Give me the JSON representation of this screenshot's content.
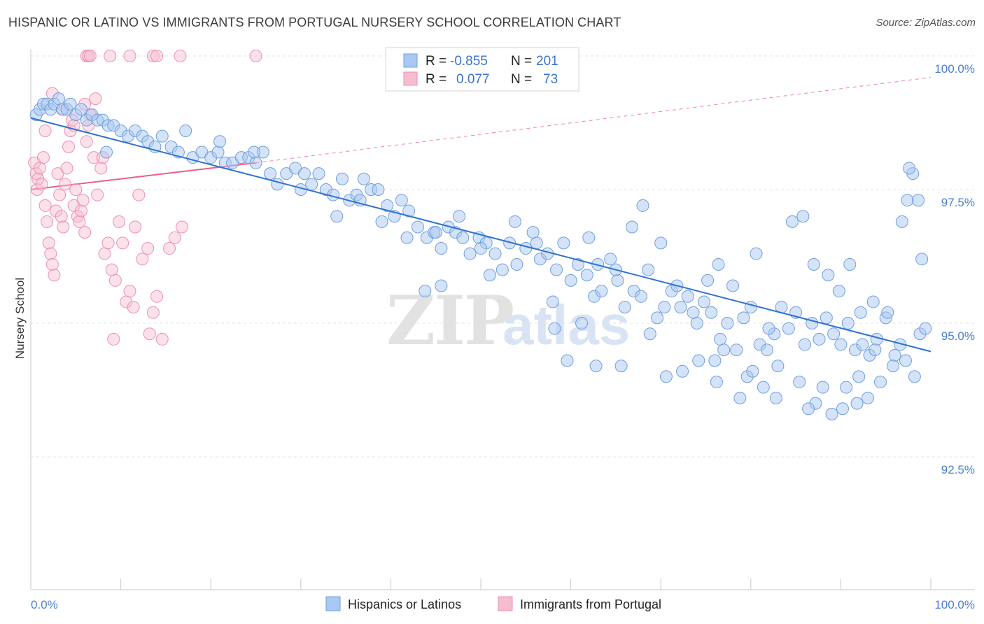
{
  "header": {
    "title": "HISPANIC OR LATINO VS IMMIGRANTS FROM PORTUGAL NURSERY SCHOOL CORRELATION CHART",
    "source": "Source: ZipAtlas.com"
  },
  "watermark": {
    "zip": "ZIP",
    "atlas": "atlas"
  },
  "legend": {
    "rows": [
      {
        "r_label": "R =",
        "r_value": "-0.855",
        "n_label": "N =",
        "n_value": "201"
      },
      {
        "r_label": "R =",
        "r_value": "0.077",
        "n_label": "N =",
        "n_value": "73"
      }
    ]
  },
  "bottom_legend": {
    "items": [
      "Hispanics or Latinos",
      "Immigrants from Portugal"
    ]
  },
  "colors": {
    "blue_fill": "#a9c8f2",
    "blue_stroke": "#6f9fe0",
    "blue_line": "#2e72d2",
    "pink_fill": "#f6bcd0",
    "pink_stroke": "#ee90b0",
    "pink_line": "#e8608c",
    "axis_text": "#4a7fd1",
    "grid": "#e3e3e3"
  },
  "chart_data": {
    "type": "scatter",
    "title": "HISPANIC OR LATINO VS IMMIGRANTS FROM PORTUGAL NURSERY SCHOOL CORRELATION CHART",
    "xlabel": "",
    "ylabel": "Nursery School",
    "xlim": [
      0,
      100
    ],
    "ylim": [
      90.0,
      100.3
    ],
    "x_tick_labels": [
      "0.0%",
      "100.0%"
    ],
    "y_ticks": [
      92.5,
      95.0,
      97.5,
      100.0
    ],
    "y_tick_labels": [
      "92.5%",
      "95.0%",
      "97.5%",
      "100.0%"
    ],
    "grid": true,
    "legend_placement": "top-center",
    "series": [
      {
        "name": "Hispanics or Latinos",
        "color": "#a9c8f2",
        "trend": {
          "x": [
            0,
            100
          ],
          "y": [
            98.84,
            94.47
          ],
          "style": "solid",
          "color": "#2e72d2"
        },
        "points": [
          [
            0.6,
            98.9
          ],
          [
            1.0,
            99.0
          ],
          [
            1.4,
            99.1
          ],
          [
            1.8,
            99.1
          ],
          [
            2.2,
            99.0
          ],
          [
            2.6,
            99.1
          ],
          [
            3.1,
            99.2
          ],
          [
            3.5,
            99.0
          ],
          [
            4.0,
            99.0
          ],
          [
            4.4,
            99.1
          ],
          [
            5.0,
            98.9
          ],
          [
            5.6,
            99.0
          ],
          [
            6.2,
            98.8
          ],
          [
            6.8,
            98.9
          ],
          [
            7.4,
            98.8
          ],
          [
            8.0,
            98.8
          ],
          [
            8.6,
            98.7
          ],
          [
            9.2,
            98.7
          ],
          [
            10.0,
            98.6
          ],
          [
            10.8,
            98.5
          ],
          [
            11.6,
            98.6
          ],
          [
            12.4,
            98.5
          ],
          [
            13.0,
            98.4
          ],
          [
            13.8,
            98.3
          ],
          [
            14.6,
            98.5
          ],
          [
            15.6,
            98.3
          ],
          [
            16.4,
            98.2
          ],
          [
            17.2,
            98.6
          ],
          [
            18.0,
            98.1
          ],
          [
            19.0,
            98.2
          ],
          [
            20.0,
            98.1
          ],
          [
            20.8,
            98.2
          ],
          [
            21.6,
            98.0
          ],
          [
            22.4,
            98.0
          ],
          [
            23.4,
            98.1
          ],
          [
            24.2,
            98.1
          ],
          [
            25.0,
            98.0
          ],
          [
            25.8,
            98.2
          ],
          [
            26.6,
            97.8
          ],
          [
            27.4,
            97.6
          ],
          [
            28.4,
            97.8
          ],
          [
            29.4,
            97.9
          ],
          [
            30.4,
            97.8
          ],
          [
            31.2,
            97.6
          ],
          [
            32.0,
            97.8
          ],
          [
            32.8,
            97.5
          ],
          [
            33.6,
            97.4
          ],
          [
            34.6,
            97.7
          ],
          [
            35.4,
            97.3
          ],
          [
            36.2,
            97.4
          ],
          [
            37.0,
            97.7
          ],
          [
            37.8,
            97.5
          ],
          [
            38.6,
            97.5
          ],
          [
            39.6,
            97.2
          ],
          [
            40.4,
            97.0
          ],
          [
            41.2,
            97.3
          ],
          [
            42.0,
            97.1
          ],
          [
            43.0,
            96.8
          ],
          [
            44.0,
            96.6
          ],
          [
            44.8,
            96.7
          ],
          [
            45.6,
            96.4
          ],
          [
            46.4,
            96.8
          ],
          [
            47.2,
            96.7
          ],
          [
            48.0,
            96.6
          ],
          [
            48.8,
            96.3
          ],
          [
            49.8,
            96.6
          ],
          [
            50.6,
            96.5
          ],
          [
            51.6,
            96.3
          ],
          [
            52.4,
            96.0
          ],
          [
            53.2,
            96.5
          ],
          [
            54.0,
            96.1
          ],
          [
            55.0,
            96.4
          ],
          [
            55.8,
            96.7
          ],
          [
            56.6,
            96.2
          ],
          [
            57.4,
            96.3
          ],
          [
            58.4,
            96.0
          ],
          [
            59.2,
            96.5
          ],
          [
            60.0,
            95.8
          ],
          [
            60.8,
            96.1
          ],
          [
            61.8,
            95.9
          ],
          [
            62.6,
            95.5
          ],
          [
            63.4,
            95.6
          ],
          [
            64.4,
            96.2
          ],
          [
            65.2,
            95.8
          ],
          [
            66.0,
            95.3
          ],
          [
            67.0,
            95.6
          ],
          [
            67.8,
            95.5
          ],
          [
            68.6,
            96.0
          ],
          [
            69.6,
            95.1
          ],
          [
            70.4,
            95.3
          ],
          [
            71.2,
            95.6
          ],
          [
            72.2,
            95.3
          ],
          [
            73.0,
            95.5
          ],
          [
            74.0,
            95.0
          ],
          [
            74.8,
            95.4
          ],
          [
            75.6,
            95.2
          ],
          [
            76.6,
            94.7
          ],
          [
            77.4,
            95.0
          ],
          [
            78.4,
            94.5
          ],
          [
            79.2,
            95.1
          ],
          [
            80.0,
            95.3
          ],
          [
            81.0,
            94.6
          ],
          [
            81.8,
            94.5
          ],
          [
            82.6,
            94.8
          ],
          [
            83.4,
            95.3
          ],
          [
            84.2,
            94.9
          ],
          [
            85.0,
            95.2
          ],
          [
            86.0,
            94.6
          ],
          [
            86.8,
            95.0
          ],
          [
            87.6,
            94.7
          ],
          [
            88.4,
            95.1
          ],
          [
            89.2,
            94.8
          ],
          [
            90.0,
            94.6
          ],
          [
            90.8,
            95.0
          ],
          [
            91.6,
            94.5
          ],
          [
            92.4,
            94.6
          ],
          [
            93.2,
            94.4
          ],
          [
            94.0,
            94.7
          ],
          [
            95.0,
            95.1
          ],
          [
            96.0,
            94.4
          ],
          [
            21.0,
            98.4
          ],
          [
            24.8,
            98.2
          ],
          [
            30.0,
            97.5
          ],
          [
            34.0,
            97.0
          ],
          [
            36.6,
            97.3
          ],
          [
            39.0,
            96.9
          ],
          [
            41.8,
            96.6
          ],
          [
            45.0,
            96.7
          ],
          [
            47.6,
            97.0
          ],
          [
            50.0,
            96.4
          ],
          [
            51.0,
            95.9
          ],
          [
            53.8,
            96.9
          ],
          [
            56.2,
            96.5
          ],
          [
            58.0,
            95.4
          ],
          [
            62.0,
            96.6
          ],
          [
            63.0,
            96.1
          ],
          [
            65.0,
            96.0
          ],
          [
            66.8,
            96.8
          ],
          [
            68.0,
            97.2
          ],
          [
            70.0,
            96.5
          ],
          [
            71.8,
            95.7
          ],
          [
            73.6,
            95.2
          ],
          [
            75.2,
            95.8
          ],
          [
            76.4,
            96.1
          ],
          [
            78.0,
            95.7
          ],
          [
            80.6,
            96.3
          ],
          [
            82.0,
            94.9
          ],
          [
            84.6,
            96.9
          ],
          [
            85.8,
            97.0
          ],
          [
            87.0,
            96.1
          ],
          [
            88.6,
            95.9
          ],
          [
            89.8,
            95.6
          ],
          [
            91.0,
            96.1
          ],
          [
            92.2,
            95.2
          ],
          [
            93.6,
            95.4
          ],
          [
            95.2,
            95.2
          ],
          [
            96.8,
            96.9
          ],
          [
            97.4,
            97.3
          ],
          [
            98.0,
            97.8
          ],
          [
            98.6,
            97.3
          ],
          [
            99.0,
            96.2
          ],
          [
            97.6,
            97.9
          ],
          [
            43.8,
            95.6
          ],
          [
            45.6,
            95.7
          ],
          [
            58.2,
            94.9
          ],
          [
            61.2,
            95.0
          ],
          [
            65.6,
            94.2
          ],
          [
            68.8,
            94.8
          ],
          [
            72.4,
            94.1
          ],
          [
            76.0,
            94.3
          ],
          [
            77.0,
            94.5
          ],
          [
            78.8,
            93.6
          ],
          [
            79.6,
            94.0
          ],
          [
            81.4,
            93.8
          ],
          [
            83.0,
            94.2
          ],
          [
            85.4,
            93.9
          ],
          [
            87.2,
            93.5
          ],
          [
            88.0,
            93.8
          ],
          [
            90.2,
            93.4
          ],
          [
            91.8,
            93.5
          ],
          [
            93.0,
            93.6
          ],
          [
            94.4,
            93.9
          ],
          [
            59.6,
            94.3
          ],
          [
            62.8,
            94.2
          ],
          [
            70.6,
            94.0
          ],
          [
            74.2,
            94.3
          ],
          [
            76.2,
            93.9
          ],
          [
            80.2,
            94.1
          ],
          [
            82.8,
            93.6
          ],
          [
            86.4,
            93.4
          ],
          [
            89.0,
            93.3
          ],
          [
            90.6,
            93.8
          ],
          [
            92.0,
            94.0
          ],
          [
            93.8,
            94.5
          ],
          [
            95.8,
            94.2
          ],
          [
            96.6,
            94.6
          ],
          [
            97.2,
            94.3
          ],
          [
            98.2,
            94.0
          ],
          [
            98.8,
            94.8
          ],
          [
            99.4,
            94.9
          ],
          [
            8.4,
            98.2
          ]
        ]
      },
      {
        "name": "Immigrants from Portugal",
        "color": "#f6bcd0",
        "trend": {
          "x": [
            0,
            25
          ],
          "y": [
            97.5,
            98.0
          ],
          "style": "solid",
          "color": "#e8608c"
        },
        "trend_extension": {
          "x": [
            25,
            100
          ],
          "y": [
            98.0,
            99.6
          ],
          "style": "dashed",
          "color": "#e8608c"
        },
        "points": [
          [
            0.4,
            98.0
          ],
          [
            0.6,
            97.8
          ],
          [
            0.7,
            97.5
          ],
          [
            0.8,
            97.7
          ],
          [
            1.0,
            97.9
          ],
          [
            1.2,
            97.6
          ],
          [
            1.4,
            98.1
          ],
          [
            1.6,
            97.2
          ],
          [
            1.8,
            96.9
          ],
          [
            2.0,
            96.5
          ],
          [
            2.2,
            96.3
          ],
          [
            2.4,
            96.1
          ],
          [
            2.6,
            95.9
          ],
          [
            2.8,
            97.1
          ],
          [
            3.0,
            97.8
          ],
          [
            3.2,
            97.4
          ],
          [
            3.4,
            97.0
          ],
          [
            3.6,
            96.8
          ],
          [
            3.8,
            97.6
          ],
          [
            4.0,
            97.9
          ],
          [
            4.2,
            98.3
          ],
          [
            4.4,
            98.6
          ],
          [
            4.6,
            98.8
          ],
          [
            4.8,
            97.2
          ],
          [
            5.0,
            97.5
          ],
          [
            5.2,
            97.0
          ],
          [
            5.4,
            96.9
          ],
          [
            5.6,
            97.1
          ],
          [
            5.8,
            97.3
          ],
          [
            6.0,
            96.7
          ],
          [
            6.2,
            98.4
          ],
          [
            6.4,
            98.7
          ],
          [
            6.6,
            98.9
          ],
          [
            7.0,
            98.1
          ],
          [
            7.4,
            97.4
          ],
          [
            7.8,
            97.9
          ],
          [
            8.2,
            96.3
          ],
          [
            8.6,
            96.5
          ],
          [
            9.0,
            96.0
          ],
          [
            9.4,
            95.8
          ],
          [
            9.8,
            96.9
          ],
          [
            10.2,
            96.5
          ],
          [
            10.6,
            95.4
          ],
          [
            11.0,
            95.6
          ],
          [
            11.6,
            96.8
          ],
          [
            12.0,
            97.4
          ],
          [
            12.4,
            96.2
          ],
          [
            13.0,
            96.4
          ],
          [
            13.6,
            95.2
          ],
          [
            14.0,
            95.5
          ],
          [
            14.6,
            94.7
          ],
          [
            15.4,
            96.4
          ],
          [
            16.0,
            96.6
          ],
          [
            16.8,
            96.8
          ],
          [
            1.6,
            98.6
          ],
          [
            2.4,
            99.3
          ],
          [
            3.6,
            99.0
          ],
          [
            4.8,
            98.7
          ],
          [
            6.0,
            99.1
          ],
          [
            7.2,
            99.2
          ],
          [
            8.0,
            98.1
          ],
          [
            9.2,
            94.7
          ],
          [
            11.4,
            95.3
          ],
          [
            13.2,
            94.8
          ],
          [
            6.2,
            100.0
          ],
          [
            6.4,
            100.0
          ],
          [
            6.6,
            100.0
          ],
          [
            8.8,
            100.0
          ],
          [
            11.0,
            100.0
          ],
          [
            13.6,
            100.0
          ],
          [
            14.0,
            100.0
          ],
          [
            16.6,
            100.0
          ],
          [
            25.0,
            100.0
          ]
        ]
      }
    ]
  }
}
